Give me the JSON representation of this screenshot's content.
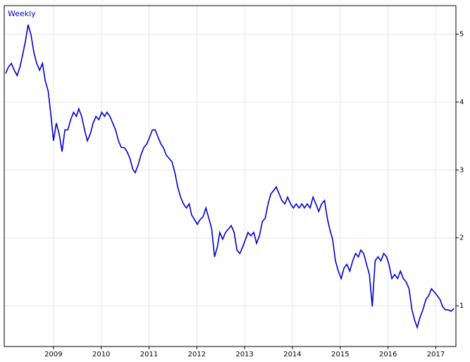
{
  "chart_data": {
    "type": "line",
    "x": [
      2008.0,
      2008.06,
      2008.12,
      2008.18,
      2008.24,
      2008.3,
      2008.35,
      2008.41,
      2008.47,
      2008.53,
      2008.59,
      2008.65,
      2008.71,
      2008.77,
      2008.83,
      2008.89,
      2008.94,
      2009.0,
      2009.06,
      2009.12,
      2009.18,
      2009.24,
      2009.3,
      2009.36,
      2009.42,
      2009.48,
      2009.53,
      2009.59,
      2009.65,
      2009.71,
      2009.77,
      2009.83,
      2009.89,
      2009.95,
      2010.01,
      2010.07,
      2010.12,
      2010.18,
      2010.24,
      2010.3,
      2010.36,
      2010.42,
      2010.48,
      2010.54,
      2010.6,
      2010.66,
      2010.71,
      2010.77,
      2010.83,
      2010.89,
      2010.95,
      2011.01,
      2011.07,
      2011.13,
      2011.19,
      2011.25,
      2011.3,
      2011.36,
      2011.42,
      2011.48,
      2011.54,
      2011.6,
      2011.66,
      2011.72,
      2011.78,
      2011.84,
      2011.89,
      2011.95,
      2012.01,
      2012.07,
      2012.13,
      2012.19,
      2012.25,
      2012.31,
      2012.37,
      2012.43,
      2012.48,
      2012.54,
      2012.6,
      2012.66,
      2012.72,
      2012.78,
      2012.84,
      2012.9,
      2012.96,
      2013.02,
      2013.07,
      2013.13,
      2013.19,
      2013.25,
      2013.31,
      2013.37,
      2013.43,
      2013.49,
      2013.55,
      2013.61,
      2013.66,
      2013.72,
      2013.78,
      2013.84,
      2013.9,
      2013.96,
      2014.02,
      2014.08,
      2014.14,
      2014.2,
      2014.25,
      2014.31,
      2014.37,
      2014.43,
      2014.49,
      2014.55,
      2014.61,
      2014.67,
      2014.73,
      2014.78,
      2014.84,
      2014.9,
      2014.96,
      2015.02,
      2015.08,
      2015.14,
      2015.2,
      2015.26,
      2015.32,
      2015.38,
      2015.43,
      2015.49,
      2015.55,
      2015.61,
      2015.67,
      2015.73,
      2015.79,
      2015.85,
      2015.91,
      2015.97,
      2016.02,
      2016.08,
      2016.14,
      2016.2,
      2016.26,
      2016.32,
      2016.38,
      2016.44,
      2016.5,
      2016.56,
      2016.61,
      2016.67,
      2016.73,
      2016.79,
      2016.85,
      2016.91,
      2016.97,
      2017.03,
      2017.09,
      2017.14,
      2017.2,
      2017.26,
      2017.32,
      2017.38
    ],
    "series": [
      {
        "name": "Weekly",
        "color": "#0000cc",
        "values": [
          4.42,
          4.52,
          4.57,
          4.47,
          4.39,
          4.52,
          4.68,
          4.88,
          5.14,
          4.99,
          4.73,
          4.57,
          4.47,
          4.57,
          4.31,
          4.16,
          3.85,
          3.43,
          3.69,
          3.53,
          3.27,
          3.59,
          3.59,
          3.74,
          3.85,
          3.79,
          3.9,
          3.79,
          3.59,
          3.43,
          3.53,
          3.69,
          3.79,
          3.74,
          3.85,
          3.79,
          3.85,
          3.79,
          3.69,
          3.59,
          3.43,
          3.33,
          3.33,
          3.27,
          3.17,
          3.01,
          2.96,
          3.07,
          3.22,
          3.33,
          3.38,
          3.48,
          3.59,
          3.59,
          3.48,
          3.38,
          3.33,
          3.22,
          3.17,
          3.12,
          2.96,
          2.75,
          2.6,
          2.5,
          2.44,
          2.5,
          2.34,
          2.27,
          2.2,
          2.27,
          2.31,
          2.44,
          2.29,
          2.13,
          1.72,
          1.87,
          2.08,
          1.98,
          2.08,
          2.13,
          2.18,
          2.08,
          1.82,
          1.77,
          1.87,
          1.98,
          2.08,
          2.03,
          2.08,
          1.92,
          2.03,
          2.24,
          2.29,
          2.5,
          2.65,
          2.7,
          2.75,
          2.65,
          2.55,
          2.5,
          2.6,
          2.5,
          2.44,
          2.5,
          2.44,
          2.5,
          2.44,
          2.5,
          2.44,
          2.6,
          2.5,
          2.39,
          2.5,
          2.55,
          2.29,
          2.13,
          1.98,
          1.66,
          1.51,
          1.4,
          1.56,
          1.61,
          1.51,
          1.66,
          1.77,
          1.72,
          1.82,
          1.77,
          1.61,
          1.46,
          0.99,
          1.66,
          1.72,
          1.66,
          1.77,
          1.72,
          1.61,
          1.4,
          1.46,
          1.4,
          1.51,
          1.4,
          1.35,
          1.25,
          0.94,
          0.78,
          0.68,
          0.83,
          0.94,
          1.09,
          1.15,
          1.25,
          1.2,
          1.15,
          1.09,
          0.99,
          0.94,
          0.94,
          0.92,
          0.96
        ]
      }
    ],
    "xlim": [
      2007.97,
      2017.42
    ],
    "xticks": [
      2009,
      2010,
      2011,
      2012,
      2013,
      2014,
      2015,
      2016,
      2017
    ],
    "ylim": [
      0.4,
      5.42
    ],
    "yticks": [
      1,
      2,
      3,
      4,
      5
    ],
    "grid": true
  }
}
